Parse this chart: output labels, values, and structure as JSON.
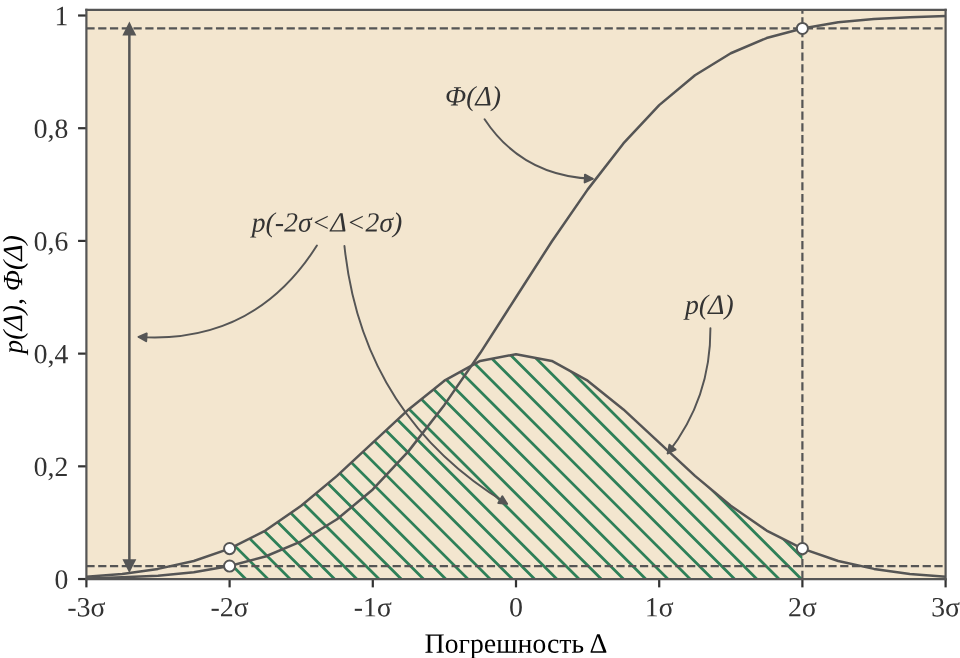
{
  "chart_data": {
    "type": "line",
    "xlabel": "Погрешность Δ",
    "ylabel": "p(Δ), Φ(Δ)",
    "xlim": [
      -3,
      3
    ],
    "ylim": [
      0,
      1.01
    ],
    "xticks": [
      {
        "value": -3,
        "label": "-3σ"
      },
      {
        "value": -2,
        "label": "-2σ"
      },
      {
        "value": -1,
        "label": "-1σ"
      },
      0,
      {
        "value": 1,
        "label": "1σ"
      },
      {
        "value": 2,
        "label": "2σ"
      },
      {
        "value": 3,
        "label": "3σ"
      }
    ],
    "yticks": [
      0,
      {
        "value": 0.2,
        "label": "0,2"
      },
      {
        "value": 0.4,
        "label": "0,4"
      },
      {
        "value": 0.6,
        "label": "0,6"
      },
      {
        "value": 0.8,
        "label": "0,8"
      },
      1
    ],
    "grid": false,
    "legend": false,
    "series": [
      {
        "type": "area",
        "color": "#2e8058",
        "x": [
          -2,
          -1.75,
          -1.5,
          -1.25,
          -1,
          -0.75,
          -0.5,
          -0.25,
          0,
          0.25,
          0.5,
          0.75,
          1,
          1.25,
          1.5,
          1.75,
          2
        ],
        "values": [
          0.054,
          0.086,
          0.13,
          0.183,
          0.242,
          0.301,
          0.352,
          0.387,
          0.399,
          0.387,
          0.352,
          0.301,
          0.242,
          0.183,
          0.13,
          0.086,
          0.054
        ]
      },
      {
        "color": "#555555",
        "x": [
          -3,
          -2.75,
          -2.5,
          -2.25,
          -2,
          -1.75,
          -1.5,
          -1.25,
          -1,
          -0.75,
          -0.5,
          -0.25,
          0,
          0.25,
          0.5,
          0.75,
          1,
          1.25,
          1.5,
          1.75,
          2,
          2.25,
          2.5,
          2.75,
          3
        ],
        "values": [
          0.004,
          0.009,
          0.018,
          0.032,
          0.054,
          0.086,
          0.13,
          0.183,
          0.242,
          0.301,
          0.352,
          0.387,
          0.399,
          0.387,
          0.352,
          0.301,
          0.242,
          0.183,
          0.13,
          0.086,
          0.054,
          0.032,
          0.018,
          0.009,
          0.004
        ]
      },
      {
        "color": "#555555",
        "x": [
          -3,
          -2.75,
          -2.5,
          -2.25,
          -2,
          -1.75,
          -1.5,
          -1.25,
          -1,
          -0.75,
          -0.5,
          -0.25,
          0,
          0.25,
          0.5,
          0.75,
          1,
          1.25,
          1.5,
          1.75,
          2,
          2.25,
          2.5,
          2.75,
          3
        ],
        "values": [
          0.001,
          0.003,
          0.006,
          0.012,
          0.023,
          0.04,
          0.067,
          0.106,
          0.159,
          0.227,
          0.309,
          0.401,
          0.5,
          0.599,
          0.691,
          0.773,
          0.841,
          0.894,
          0.933,
          0.96,
          0.977,
          0.988,
          0.994,
          0.997,
          0.999
        ]
      },
      {
        "type": "line",
        "color": "#555555",
        "x": [
          -2.7,
          -2.7
        ],
        "values": [
          0.023,
          0.977
        ],
        "marker": "triangle"
      },
      {
        "type": "scatter",
        "color": "#ffffff",
        "marker": "circle",
        "x": [
          -2,
          -2,
          2,
          2
        ],
        "values": [
          0.054,
          0.023,
          0.054,
          0.977
        ]
      }
    ],
    "ref_lines": [
      {
        "axis": "y",
        "value": 0.977,
        "line_style": "dashed",
        "color": "#555555"
      },
      {
        "axis": "y",
        "value": 0.023,
        "line_style": "dashed",
        "color": "#555555"
      },
      {
        "axis": "x",
        "value": 2,
        "line_style": "dashed",
        "color": "#555555"
      }
    ],
    "annotations": [
      {
        "text": "Φ(Δ)",
        "x": 0.55,
        "y": 0.71
      },
      {
        "text": "p(Δ)",
        "x": 1.05,
        "y": 0.22
      },
      "p(-2σ<Δ<2σ)"
    ]
  }
}
